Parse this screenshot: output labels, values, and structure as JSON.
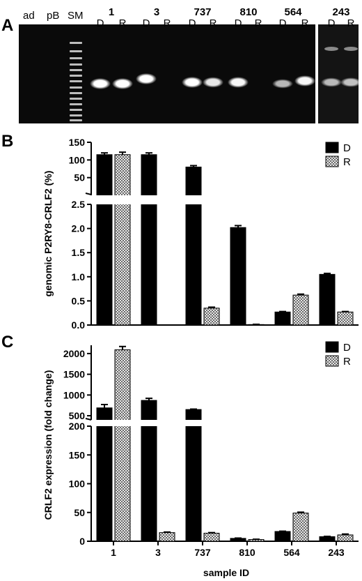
{
  "gel": {
    "panel_label": "A",
    "top_labels": [
      "ad",
      "pB",
      "SM"
    ],
    "sample_labels": [
      "1",
      "3",
      "737",
      "810",
      "564",
      "243"
    ],
    "lane_labels": [
      "D",
      "R",
      "D",
      "R",
      "D",
      "R",
      "D",
      "R",
      "D",
      "R",
      "D",
      "R"
    ],
    "band_intensity": [
      1,
      1,
      1,
      0,
      1,
      0.85,
      0.95,
      0,
      0.55,
      0.95,
      0.55,
      0.6
    ]
  },
  "chart_data": [
    {
      "panel_label": "B",
      "type": "bar",
      "categories": [
        "1",
        "3",
        "737",
        "810",
        "564",
        "243"
      ],
      "ylabel": "genomic P2RY8-CRLF2 (%)",
      "xlabel": "",
      "broken_axis": true,
      "segments": [
        {
          "range": [
            0,
            2.5
          ],
          "ticks": [
            "0.0",
            "0.5",
            "1.0",
            "1.5",
            "2.0",
            "2.5"
          ]
        },
        {
          "range": [
            0,
            150
          ],
          "ticks": [
            "50",
            "100",
            "150"
          ]
        }
      ],
      "series": [
        {
          "name": "D",
          "color": "#000000",
          "fill": "solid",
          "values": [
            115,
            115,
            80,
            2.02,
            0.27,
            1.05
          ],
          "errors": [
            5,
            5,
            4,
            0.04,
            0.01,
            0.02
          ]
        },
        {
          "name": "R",
          "color": "#cccccc",
          "fill": "checkered",
          "values": [
            115,
            0,
            0.35,
            0.01,
            0.62,
            0.27
          ],
          "errors": [
            7,
            0,
            0.02,
            0.005,
            0.02,
            0.01
          ]
        }
      ],
      "legend": {
        "placement": "top-right",
        "items": [
          "D",
          "R"
        ]
      }
    },
    {
      "panel_label": "C",
      "type": "bar",
      "categories": [
        "1",
        "3",
        "737",
        "810",
        "564",
        "243"
      ],
      "ylabel": "CRLF2 expression (fold change)",
      "xlabel": "sample ID",
      "broken_axis": true,
      "segments": [
        {
          "range": [
            0,
            200
          ],
          "ticks": [
            "0",
            "50",
            "100",
            "150",
            "200"
          ]
        },
        {
          "range": [
            400,
            2200
          ],
          "ticks": [
            "500",
            "1000",
            "1500",
            "2000"
          ]
        }
      ],
      "series": [
        {
          "name": "D",
          "color": "#000000",
          "fill": "solid",
          "values": [
            690,
            870,
            650,
            5,
            17,
            8
          ],
          "errors": [
            80,
            50,
            10,
            0.5,
            0.5,
            0.5
          ]
        },
        {
          "name": "R",
          "color": "#cccccc",
          "fill": "checkered",
          "values": [
            2090,
            15,
            14,
            3,
            49,
            11
          ],
          "errors": [
            80,
            1,
            1,
            0.5,
            1.5,
            1.5
          ]
        }
      ],
      "legend": {
        "placement": "top-right",
        "items": [
          "D",
          "R"
        ]
      }
    }
  ]
}
